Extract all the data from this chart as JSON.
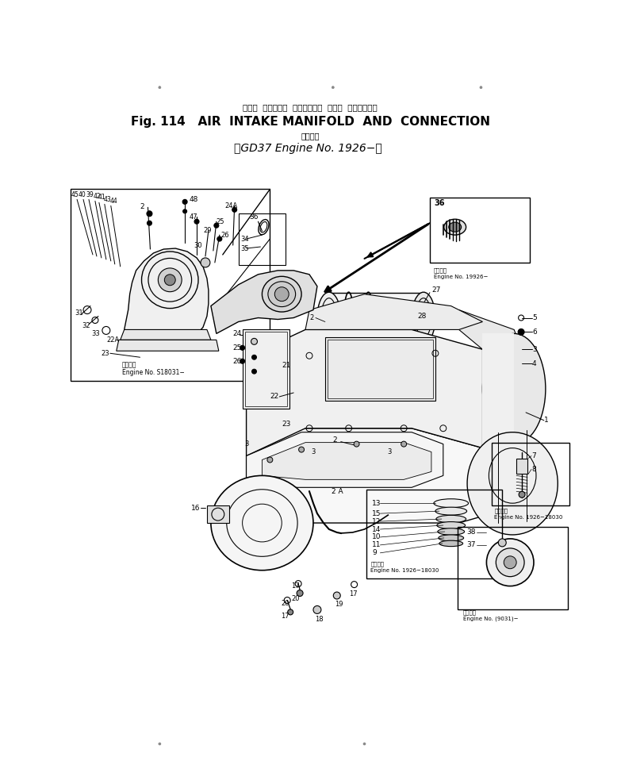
{
  "bg_color": "#ffffff",
  "line_color": "#000000",
  "fig_width": 7.83,
  "fig_height": 9.83,
  "title_jp": "エアー  インテーク  マニホールド  および  コネクション",
  "title_en": "Fig. 114   AIR  INTAKE MANIFOLD  AND  CONNECTION",
  "title_sub_jp": "適用号機",
  "title_engine": "GD37 Engine No. 1926−）",
  "title_engine_prefix": "（",
  "engine_label_left": "適用号機",
  "engine_no_s18031": "Engine No. S18031−",
  "engine_no_1926": "Engine No. 19926−",
  "engine_no_1926_18030": "Engine No. 1926−18030",
  "engine_no_9031": "Engine No. (9031)−"
}
